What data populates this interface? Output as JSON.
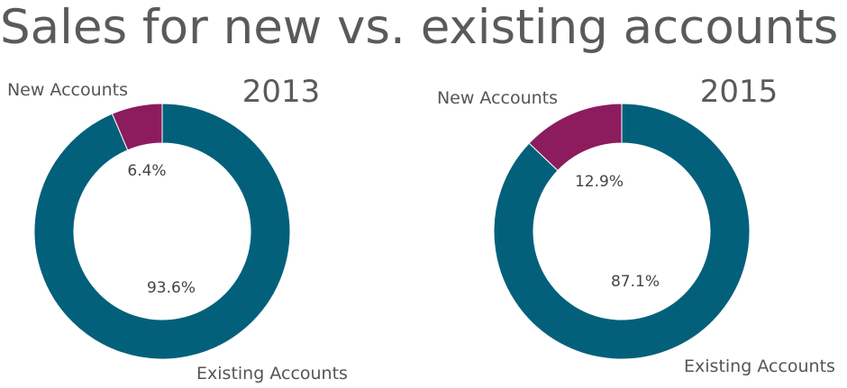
{
  "title": "Sales for new vs. existing accounts",
  "colors": {
    "existing": "#03607a",
    "new": "#8c1c5e"
  },
  "chart_data": [
    {
      "type": "pie",
      "title": "2013",
      "slices": [
        {
          "label": "New Accounts",
          "value": 6.4,
          "value_label": "6.4%"
        },
        {
          "label": "Existing Accounts",
          "value": 93.6,
          "value_label": "93.6%"
        }
      ]
    },
    {
      "type": "pie",
      "title": "2015",
      "slices": [
        {
          "label": "New Accounts",
          "value": 12.9,
          "value_label": "12.9%"
        },
        {
          "label": "Existing Accounts",
          "value": 87.1,
          "value_label": "87.1%"
        }
      ]
    }
  ]
}
